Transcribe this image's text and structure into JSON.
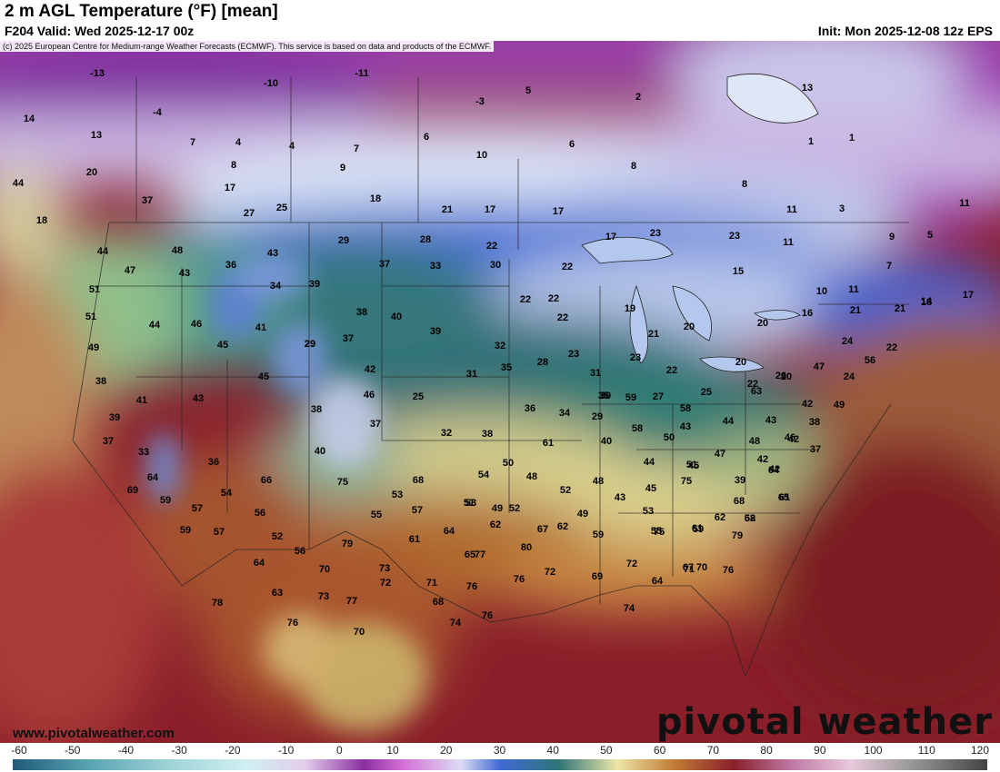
{
  "header": {
    "title": "2 m AGL Temperature (°F) [mean]",
    "valid": "F204 Valid: Wed 2025-12-17 00z",
    "init": "Init: Mon 2025-12-08 12z EPS"
  },
  "map": {
    "copyright": "(c) 2025 European Centre for Medium-range Weather Forecasts (ECMWF). This service is based on data and products of the ECMWF.",
    "site_url": "www.pivotalweather.com",
    "brand": "pivotal weather"
  },
  "temperature_labels": [
    "-13",
    "-11",
    "-10",
    "-4",
    "-3",
    "5",
    "2",
    "13",
    "14",
    "13",
    "7",
    "4",
    "4",
    "7",
    "6",
    "6",
    "10",
    "8",
    "1",
    "1",
    "20",
    "8",
    "9",
    "8",
    "17",
    "18",
    "21",
    "17",
    "17",
    "11",
    "3",
    "11",
    "44",
    "37",
    "27",
    "25",
    "29",
    "28",
    "22",
    "17",
    "23",
    "11",
    "9",
    "5",
    "18",
    "44",
    "48",
    "43",
    "37",
    "33",
    "30",
    "23",
    "22",
    "15",
    "7",
    "47",
    "43",
    "36",
    "34",
    "39",
    "29",
    "22",
    "10",
    "11",
    "17",
    "51",
    "38",
    "40",
    "19",
    "22",
    "21",
    "14",
    "51",
    "44",
    "46",
    "41",
    "29",
    "37",
    "39",
    "32",
    "22",
    "21",
    "20",
    "20",
    "16",
    "21",
    "18",
    "49",
    "45",
    "42",
    "35",
    "28",
    "23",
    "23",
    "22",
    "20",
    "26",
    "24",
    "22",
    "56",
    "38",
    "43",
    "45",
    "46",
    "25",
    "31",
    "30",
    "27",
    "25",
    "22",
    "20",
    "24",
    "47",
    "41",
    "38",
    "31",
    "35",
    "59",
    "58",
    "63",
    "49",
    "42",
    "39",
    "37",
    "36",
    "37",
    "36",
    "34",
    "29",
    "58",
    "43",
    "44",
    "43",
    "42",
    "38",
    "33",
    "40",
    "32",
    "38",
    "61",
    "40",
    "50",
    "51",
    "47",
    "48",
    "46",
    "42",
    "37",
    "64",
    "66",
    "75",
    "68",
    "54",
    "50",
    "48",
    "48",
    "44",
    "45",
    "39",
    "42",
    "65",
    "69",
    "59",
    "57",
    "54",
    "53",
    "51",
    "49",
    "52",
    "43",
    "45",
    "75",
    "68",
    "64",
    "62",
    "61",
    "59",
    "56",
    "55",
    "57",
    "53",
    "52",
    "49",
    "53",
    "75",
    "62",
    "59",
    "58",
    "57",
    "52",
    "56",
    "79",
    "61",
    "64",
    "62",
    "67",
    "62",
    "59",
    "55",
    "61",
    "79",
    "64",
    "70",
    "73",
    "65",
    "77",
    "80",
    "72",
    "69",
    "72",
    "71",
    "70",
    "76",
    "78",
    "73",
    "72",
    "71",
    "76",
    "76",
    "74",
    "64",
    "67",
    "63",
    "76",
    "77",
    "70",
    "68",
    "74",
    "76"
  ],
  "colorbar": {
    "ticks": [
      "-60",
      "-50",
      "-40",
      "-30",
      "-20",
      "-10",
      "0",
      "10",
      "20",
      "30",
      "40",
      "50",
      "60",
      "70",
      "80",
      "90",
      "100",
      "110",
      "120"
    ]
  }
}
